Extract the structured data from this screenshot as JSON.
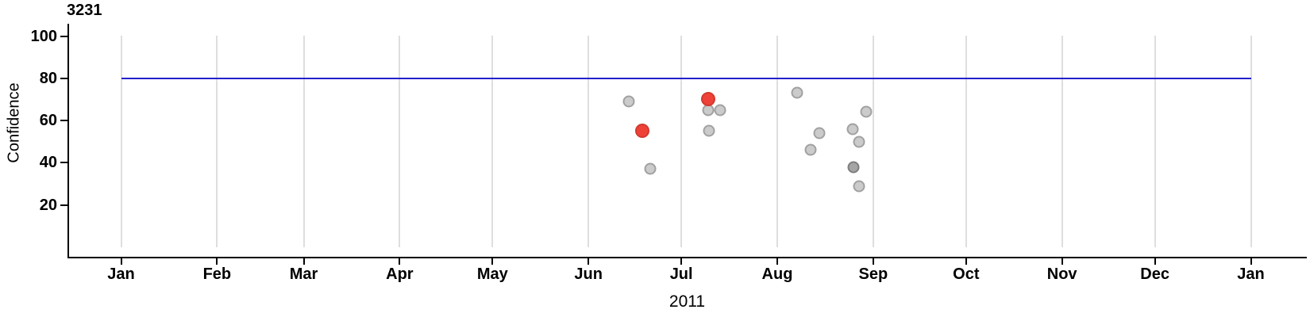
{
  "chart_data": {
    "type": "scatter",
    "title": "3231",
    "xlabel": "2011",
    "ylabel": "Confidence",
    "x_axis": {
      "kind": "date",
      "year": "2011",
      "tick_labels": [
        "Jan",
        "Feb",
        "Mar",
        "Apr",
        "May",
        "Jun",
        "Jul",
        "Aug",
        "Sep",
        "Oct",
        "Nov",
        "Dec",
        "Jan"
      ],
      "tick_day_of_year": [
        0,
        31,
        59,
        90,
        120,
        151,
        181,
        212,
        243,
        273,
        304,
        334,
        365
      ],
      "range_days": [
        0,
        365
      ],
      "grid": "vertical-lines-at-month-ticks"
    },
    "y_axis": {
      "ticks": [
        20,
        40,
        60,
        80,
        100
      ],
      "lim": [
        0,
        105
      ]
    },
    "reference_line": {
      "confidence": 80,
      "color": "#2121cc"
    },
    "colors": {
      "grid": "#dedede",
      "axis": "#000000",
      "normal_fill": "#cbcbcb",
      "normal_stroke": "#a1a1a1",
      "dark_overlap_fill": "#a5a5a5",
      "dark_overlap_stroke": "#7e7e7e",
      "highlight_fill": "#ee4238",
      "highlight_stroke": "#d23930"
    },
    "series": [
      {
        "name": "normal",
        "marker": "circle",
        "points": [
          {
            "date": "2011-06-14",
            "doy": 164,
            "confidence": 69
          },
          {
            "date": "2011-06-21",
            "doy": 171,
            "confidence": 37
          },
          {
            "date": "2011-07-09",
            "doy": 189.8,
            "confidence": 65
          },
          {
            "date": "2011-07-09",
            "doy": 189.9,
            "confidence": 55
          },
          {
            "date": "2011-07-13",
            "doy": 193.5,
            "confidence": 65
          },
          {
            "date": "2011-08-07",
            "doy": 218.3,
            "confidence": 73
          },
          {
            "date": "2011-08-11",
            "doy": 222.7,
            "confidence": 46
          },
          {
            "date": "2011-08-14",
            "doy": 225.6,
            "confidence": 54
          },
          {
            "date": "2011-08-25",
            "doy": 236.3,
            "confidence": 56
          },
          {
            "date": "2011-08-25",
            "doy": 236.5,
            "confidence": 38,
            "appearance": "dark-overlap"
          },
          {
            "date": "2011-08-27",
            "doy": 238.5,
            "confidence": 50
          },
          {
            "date": "2011-08-27",
            "doy": 238.5,
            "confidence": 29
          },
          {
            "date": "2011-08-29",
            "doy": 240.6,
            "confidence": 64
          }
        ]
      },
      {
        "name": "highlighted",
        "marker": "circle-large",
        "points": [
          {
            "date": "2011-06-18",
            "doy": 168.5,
            "confidence": 55
          },
          {
            "date": "2011-07-09",
            "doy": 189.7,
            "confidence": 70
          }
        ]
      }
    ]
  }
}
